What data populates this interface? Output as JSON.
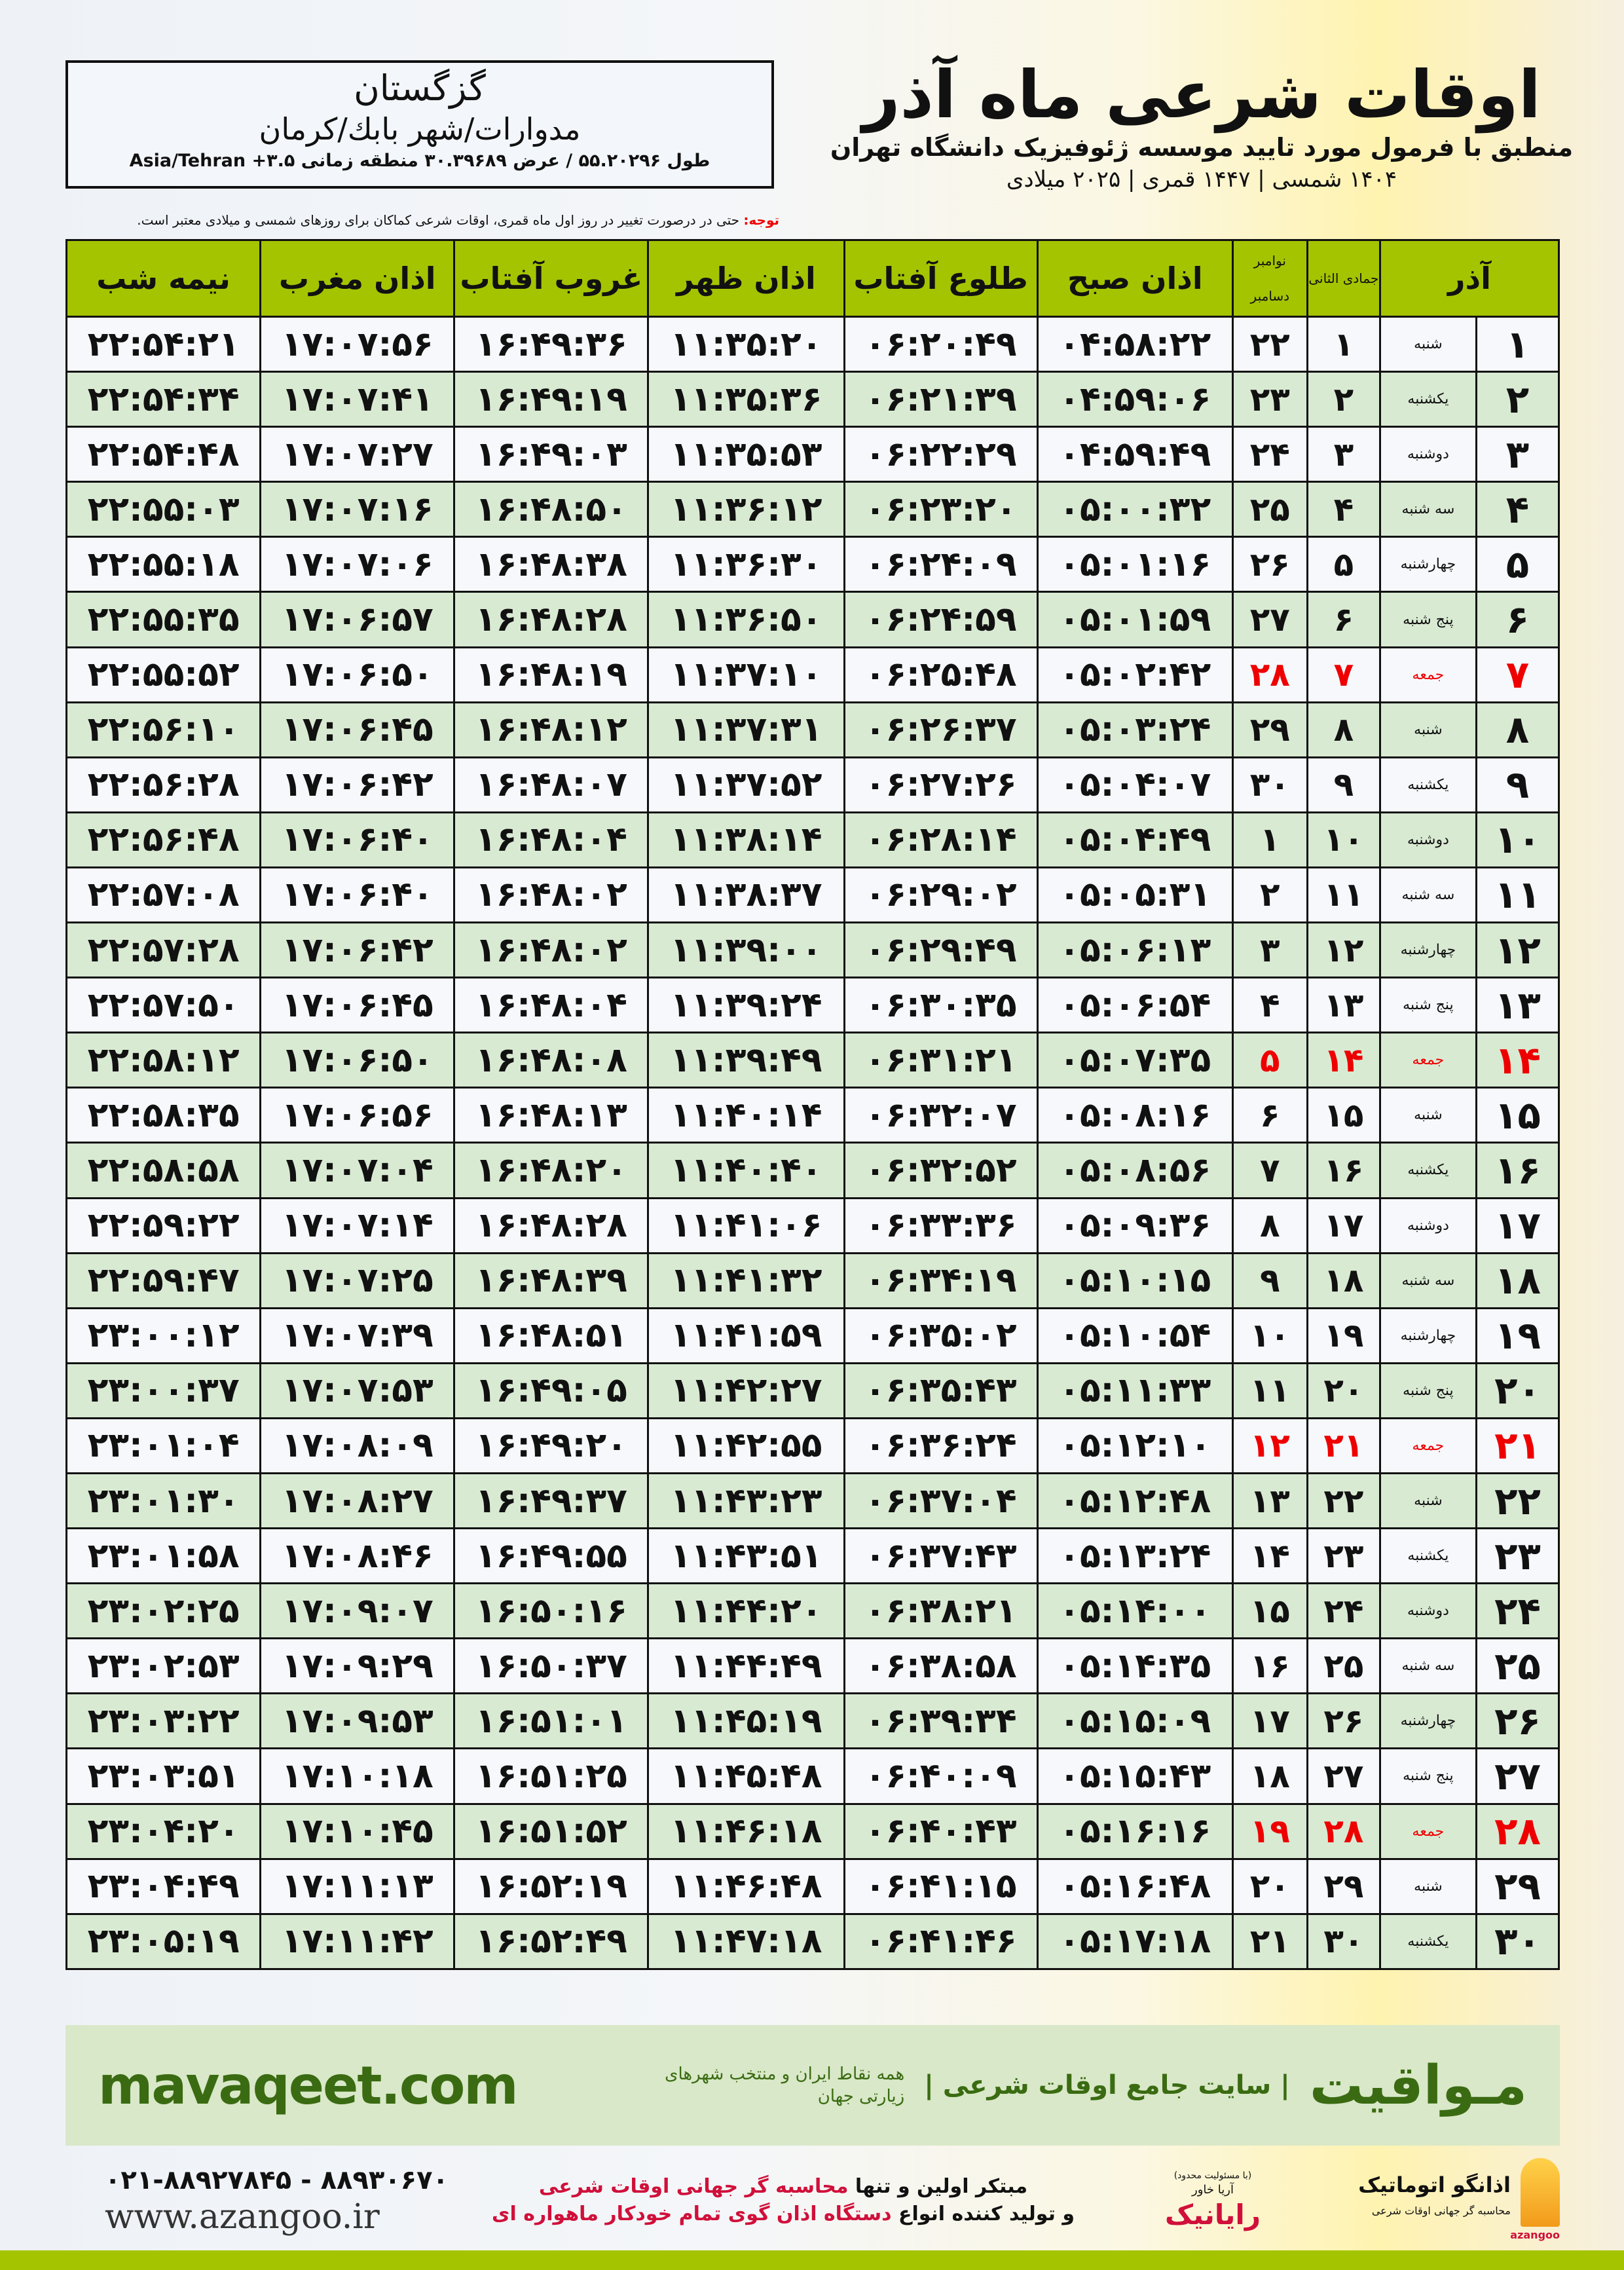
{
  "location": {
    "city": "گزگستان",
    "region": "مدوارات/شهر بابك/كرمان",
    "coords": "طول ۵۵.۲۰۲۹۶ / عرض ۳۰.۳۹۶۸۹ منطقه زمانی ۳.۵+ Asia/Tehran"
  },
  "header": {
    "title": "اوقات شرعی ماه آذر",
    "subtitle": "منطبق با فرمول مورد تایید موسسه ژئوفیزیک دانشگاه تهران",
    "years": "۱۴۰۴ شمسی | ۱۴۴۷ قمری | ۲۰۲۵ میلادی"
  },
  "note": {
    "label": "توجه:",
    "text": " حتی در درصورت تغییر در روز اول ماه قمری، اوقات شرعی کماکان برای روزهای شمسی و میلادی معتبر است."
  },
  "table": {
    "columns": {
      "azar": "آذر",
      "hijri": "جمادی الثانی",
      "greg_top": "نوامبر",
      "greg_bottom": "دسامبر",
      "fajr": "اذان صبح",
      "sunrise": "طلوع آفتاب",
      "dhuhr": "اذان ظهر",
      "sunset": "غروب آفتاب",
      "maghrib": "اذان مغرب",
      "midnight": "نیمه شب"
    },
    "rows": [
      {
        "day": "۱",
        "wd": "شنبه",
        "hj": "۱",
        "gr": "۲۲",
        "t": [
          "۰۴:۵۸:۲۲",
          "۰۶:۲۰:۴۹",
          "۱۱:۳۵:۲۰",
          "۱۶:۴۹:۳۶",
          "۱۷:۰۷:۵۶",
          "۲۲:۵۴:۲۱"
        ]
      },
      {
        "day": "۲",
        "wd": "یکشنبه",
        "hj": "۲",
        "gr": "۲۳",
        "t": [
          "۰۴:۵۹:۰۶",
          "۰۶:۲۱:۳۹",
          "۱۱:۳۵:۳۶",
          "۱۶:۴۹:۱۹",
          "۱۷:۰۷:۴۱",
          "۲۲:۵۴:۳۴"
        ]
      },
      {
        "day": "۳",
        "wd": "دوشنبه",
        "hj": "۳",
        "gr": "۲۴",
        "t": [
          "۰۴:۵۹:۴۹",
          "۰۶:۲۲:۲۹",
          "۱۱:۳۵:۵۳",
          "۱۶:۴۹:۰۳",
          "۱۷:۰۷:۲۷",
          "۲۲:۵۴:۴۸"
        ]
      },
      {
        "day": "۴",
        "wd": "سه شنبه",
        "hj": "۴",
        "gr": "۲۵",
        "t": [
          "۰۵:۰۰:۳۲",
          "۰۶:۲۳:۲۰",
          "۱۱:۳۶:۱۲",
          "۱۶:۴۸:۵۰",
          "۱۷:۰۷:۱۶",
          "۲۲:۵۵:۰۳"
        ]
      },
      {
        "day": "۵",
        "wd": "چهارشنبه",
        "hj": "۵",
        "gr": "۲۶",
        "t": [
          "۰۵:۰۱:۱۶",
          "۰۶:۲۴:۰۹",
          "۱۱:۳۶:۳۰",
          "۱۶:۴۸:۳۸",
          "۱۷:۰۷:۰۶",
          "۲۲:۵۵:۱۸"
        ]
      },
      {
        "day": "۶",
        "wd": "پنج شنبه",
        "hj": "۶",
        "gr": "۲۷",
        "t": [
          "۰۵:۰۱:۵۹",
          "۰۶:۲۴:۵۹",
          "۱۱:۳۶:۵۰",
          "۱۶:۴۸:۲۸",
          "۱۷:۰۶:۵۷",
          "۲۲:۵۵:۳۵"
        ]
      },
      {
        "day": "۷",
        "wd": "جمعه",
        "hj": "۷",
        "gr": "۲۸",
        "t": [
          "۰۵:۰۲:۴۲",
          "۰۶:۲۵:۴۸",
          "۱۱:۳۷:۱۰",
          "۱۶:۴۸:۱۹",
          "۱۷:۰۶:۵۰",
          "۲۲:۵۵:۵۲"
        ]
      },
      {
        "day": "۸",
        "wd": "شنبه",
        "hj": "۸",
        "gr": "۲۹",
        "t": [
          "۰۵:۰۳:۲۴",
          "۰۶:۲۶:۳۷",
          "۱۱:۳۷:۳۱",
          "۱۶:۴۸:۱۲",
          "۱۷:۰۶:۴۵",
          "۲۲:۵۶:۱۰"
        ]
      },
      {
        "day": "۹",
        "wd": "یکشنبه",
        "hj": "۹",
        "gr": "۳۰",
        "t": [
          "۰۵:۰۴:۰۷",
          "۰۶:۲۷:۲۶",
          "۱۱:۳۷:۵۲",
          "۱۶:۴۸:۰۷",
          "۱۷:۰۶:۴۲",
          "۲۲:۵۶:۲۸"
        ]
      },
      {
        "day": "۱۰",
        "wd": "دوشنبه",
        "hj": "۱۰",
        "gr": "۱",
        "t": [
          "۰۵:۰۴:۴۹",
          "۰۶:۲۸:۱۴",
          "۱۱:۳۸:۱۴",
          "۱۶:۴۸:۰۴",
          "۱۷:۰۶:۴۰",
          "۲۲:۵۶:۴۸"
        ]
      },
      {
        "day": "۱۱",
        "wd": "سه شنبه",
        "hj": "۱۱",
        "gr": "۲",
        "t": [
          "۰۵:۰۵:۳۱",
          "۰۶:۲۹:۰۲",
          "۱۱:۳۸:۳۷",
          "۱۶:۴۸:۰۲",
          "۱۷:۰۶:۴۰",
          "۲۲:۵۷:۰۸"
        ]
      },
      {
        "day": "۱۲",
        "wd": "چهارشنبه",
        "hj": "۱۲",
        "gr": "۳",
        "t": [
          "۰۵:۰۶:۱۳",
          "۰۶:۲۹:۴۹",
          "۱۱:۳۹:۰۰",
          "۱۶:۴۸:۰۲",
          "۱۷:۰۶:۴۲",
          "۲۲:۵۷:۲۸"
        ]
      },
      {
        "day": "۱۳",
        "wd": "پنج شنبه",
        "hj": "۱۳",
        "gr": "۴",
        "t": [
          "۰۵:۰۶:۵۴",
          "۰۶:۳۰:۳۵",
          "۱۱:۳۹:۲۴",
          "۱۶:۴۸:۰۴",
          "۱۷:۰۶:۴۵",
          "۲۲:۵۷:۵۰"
        ]
      },
      {
        "day": "۱۴",
        "wd": "جمعه",
        "hj": "۱۴",
        "gr": "۵",
        "t": [
          "۰۵:۰۷:۳۵",
          "۰۶:۳۱:۲۱",
          "۱۱:۳۹:۴۹",
          "۱۶:۴۸:۰۸",
          "۱۷:۰۶:۵۰",
          "۲۲:۵۸:۱۲"
        ]
      },
      {
        "day": "۱۵",
        "wd": "شنبه",
        "hj": "۱۵",
        "gr": "۶",
        "t": [
          "۰۵:۰۸:۱۶",
          "۰۶:۳۲:۰۷",
          "۱۱:۴۰:۱۴",
          "۱۶:۴۸:۱۳",
          "۱۷:۰۶:۵۶",
          "۲۲:۵۸:۳۵"
        ]
      },
      {
        "day": "۱۶",
        "wd": "یکشنبه",
        "hj": "۱۶",
        "gr": "۷",
        "t": [
          "۰۵:۰۸:۵۶",
          "۰۶:۳۲:۵۲",
          "۱۱:۴۰:۴۰",
          "۱۶:۴۸:۲۰",
          "۱۷:۰۷:۰۴",
          "۲۲:۵۸:۵۸"
        ]
      },
      {
        "day": "۱۷",
        "wd": "دوشنبه",
        "hj": "۱۷",
        "gr": "۸",
        "t": [
          "۰۵:۰۹:۳۶",
          "۰۶:۳۳:۳۶",
          "۱۱:۴۱:۰۶",
          "۱۶:۴۸:۲۸",
          "۱۷:۰۷:۱۴",
          "۲۲:۵۹:۲۲"
        ]
      },
      {
        "day": "۱۸",
        "wd": "سه شنبه",
        "hj": "۱۸",
        "gr": "۹",
        "t": [
          "۰۵:۱۰:۱۵",
          "۰۶:۳۴:۱۹",
          "۱۱:۴۱:۳۲",
          "۱۶:۴۸:۳۹",
          "۱۷:۰۷:۲۵",
          "۲۲:۵۹:۴۷"
        ]
      },
      {
        "day": "۱۹",
        "wd": "چهارشنبه",
        "hj": "۱۹",
        "gr": "۱۰",
        "t": [
          "۰۵:۱۰:۵۴",
          "۰۶:۳۵:۰۲",
          "۱۱:۴۱:۵۹",
          "۱۶:۴۸:۵۱",
          "۱۷:۰۷:۳۹",
          "۲۳:۰۰:۱۲"
        ]
      },
      {
        "day": "۲۰",
        "wd": "پنج شنبه",
        "hj": "۲۰",
        "gr": "۱۱",
        "t": [
          "۰۵:۱۱:۳۳",
          "۰۶:۳۵:۴۳",
          "۱۱:۴۲:۲۷",
          "۱۶:۴۹:۰۵",
          "۱۷:۰۷:۵۳",
          "۲۳:۰۰:۳۷"
        ]
      },
      {
        "day": "۲۱",
        "wd": "جمعه",
        "hj": "۲۱",
        "gr": "۱۲",
        "t": [
          "۰۵:۱۲:۱۰",
          "۰۶:۳۶:۲۴",
          "۱۱:۴۲:۵۵",
          "۱۶:۴۹:۲۰",
          "۱۷:۰۸:۰۹",
          "۲۳:۰۱:۰۴"
        ]
      },
      {
        "day": "۲۲",
        "wd": "شنبه",
        "hj": "۲۲",
        "gr": "۱۳",
        "t": [
          "۰۵:۱۲:۴۸",
          "۰۶:۳۷:۰۴",
          "۱۱:۴۳:۲۳",
          "۱۶:۴۹:۳۷",
          "۱۷:۰۸:۲۷",
          "۲۳:۰۱:۳۰"
        ]
      },
      {
        "day": "۲۳",
        "wd": "یکشنبه",
        "hj": "۲۳",
        "gr": "۱۴",
        "t": [
          "۰۵:۱۳:۲۴",
          "۰۶:۳۷:۴۳",
          "۱۱:۴۳:۵۱",
          "۱۶:۴۹:۵۵",
          "۱۷:۰۸:۴۶",
          "۲۳:۰۱:۵۸"
        ]
      },
      {
        "day": "۲۴",
        "wd": "دوشنبه",
        "hj": "۲۴",
        "gr": "۱۵",
        "t": [
          "۰۵:۱۴:۰۰",
          "۰۶:۳۸:۲۱",
          "۱۱:۴۴:۲۰",
          "۱۶:۵۰:۱۶",
          "۱۷:۰۹:۰۷",
          "۲۳:۰۲:۲۵"
        ]
      },
      {
        "day": "۲۵",
        "wd": "سه شنبه",
        "hj": "۲۵",
        "gr": "۱۶",
        "t": [
          "۰۵:۱۴:۳۵",
          "۰۶:۳۸:۵۸",
          "۱۱:۴۴:۴۹",
          "۱۶:۵۰:۳۷",
          "۱۷:۰۹:۲۹",
          "۲۳:۰۲:۵۳"
        ]
      },
      {
        "day": "۲۶",
        "wd": "چهارشنبه",
        "hj": "۲۶",
        "gr": "۱۷",
        "t": [
          "۰۵:۱۵:۰۹",
          "۰۶:۳۹:۳۴",
          "۱۱:۴۵:۱۹",
          "۱۶:۵۱:۰۱",
          "۱۷:۰۹:۵۳",
          "۲۳:۰۳:۲۲"
        ]
      },
      {
        "day": "۲۷",
        "wd": "پنج شنبه",
        "hj": "۲۷",
        "gr": "۱۸",
        "t": [
          "۰۵:۱۵:۴۳",
          "۰۶:۴۰:۰۹",
          "۱۱:۴۵:۴۸",
          "۱۶:۵۱:۲۵",
          "۱۷:۱۰:۱۸",
          "۲۳:۰۳:۵۱"
        ]
      },
      {
        "day": "۲۸",
        "wd": "جمعه",
        "hj": "۲۸",
        "gr": "۱۹",
        "t": [
          "۰۵:۱۶:۱۶",
          "۰۶:۴۰:۴۳",
          "۱۱:۴۶:۱۸",
          "۱۶:۵۱:۵۲",
          "۱۷:۱۰:۴۵",
          "۲۳:۰۴:۲۰"
        ]
      },
      {
        "day": "۲۹",
        "wd": "شنبه",
        "hj": "۲۹",
        "gr": "۲۰",
        "t": [
          "۰۵:۱۶:۴۸",
          "۰۶:۴۱:۱۵",
          "۱۱:۴۶:۴۸",
          "۱۶:۵۲:۱۹",
          "۱۷:۱۱:۱۳",
          "۲۳:۰۴:۴۹"
        ]
      },
      {
        "day": "۳۰",
        "wd": "یکشنبه",
        "hj": "۳۰",
        "gr": "۲۱",
        "t": [
          "۰۵:۱۷:۱۸",
          "۰۶:۴۱:۴۶",
          "۱۱:۴۷:۱۸",
          "۱۶:۵۲:۴۹",
          "۱۷:۱۱:۴۲",
          "۲۳:۰۵:۱۹"
        ]
      }
    ]
  },
  "banner": {
    "brand": "مـواقیت",
    "slogan": "| سایت جامع اوقات شرعی |",
    "slogan2": "همه نقاط ایران و منتخب شهرهای زیارتی جهان",
    "site": "mavaqeet.com"
  },
  "footer": {
    "phone": "۰۲۱-۸۸۹۲۷۸۴۵ - ۸۸۹۳۰۶۷۰",
    "url": "www.azangoo.ir",
    "promo1a": "مبتکر اولین و تنها ",
    "promo1b": "محاسبه گر جهانی اوقات شرعی",
    "promo2a": "و تولید کننده انواع ",
    "promo2b": "دستگاه اذان گوی تمام خودکار ماهواره ای",
    "logo1_note": "(با مسئولیت محدود)",
    "logo1_small": "آریا خاور",
    "logo1_name": "رایانیک",
    "logo2_name": "اذانگو اتوماتیک",
    "logo2_tag": "محاسبه گر جهانی اوقات شرعی",
    "logo2_en": "azangoo"
  },
  "colors": {
    "header_green": "#a5c400",
    "row_alt": "#d9ead3",
    "friday_red": "#ee0000",
    "brand_green": "#3a6b12"
  }
}
